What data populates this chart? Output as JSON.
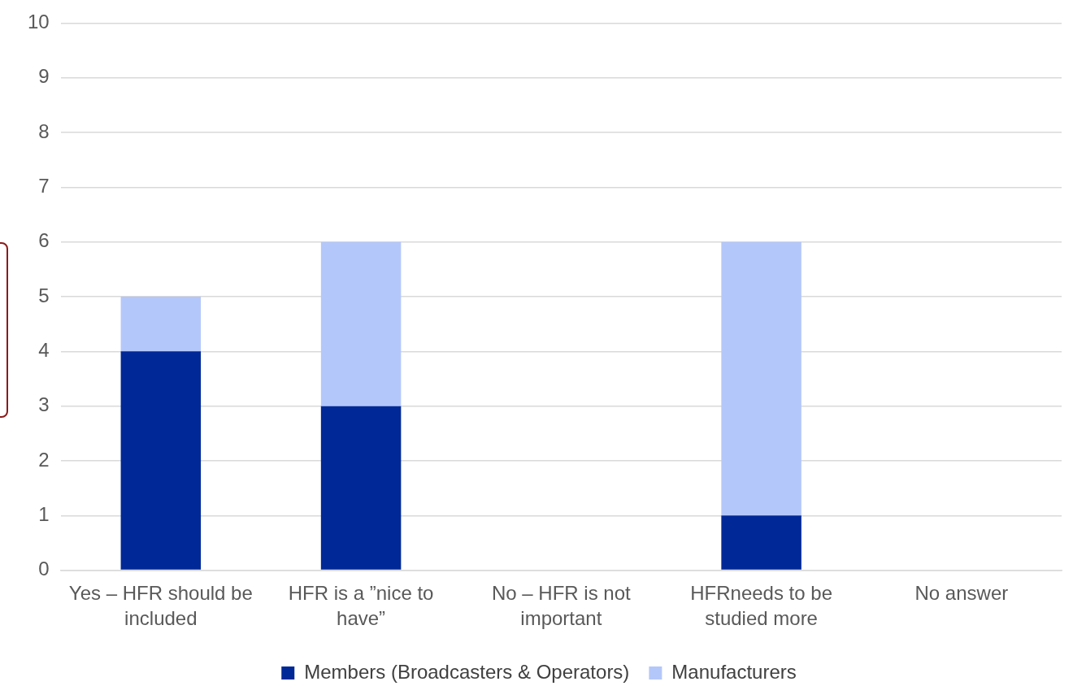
{
  "chart_data": {
    "type": "bar",
    "stacked": true,
    "categories": [
      "Yes – HFR should be included",
      "HFR is a ”nice to have”",
      "No – HFR is not important",
      "HFRneeds to be studied more",
      "No answer"
    ],
    "series": [
      {
        "name": "Members (Broadcasters & Operators)",
        "color": "#002896",
        "values": [
          4,
          3,
          0,
          1,
          0
        ]
      },
      {
        "name": "Manufacturers",
        "color": "#b4c7fa",
        "values": [
          1,
          3,
          0,
          5,
          0
        ]
      }
    ],
    "ylim": [
      0,
      10
    ],
    "yticks": [
      0,
      1,
      2,
      3,
      4,
      5,
      6,
      7,
      8,
      9,
      10
    ],
    "grid": "y",
    "legend": "bottom"
  }
}
